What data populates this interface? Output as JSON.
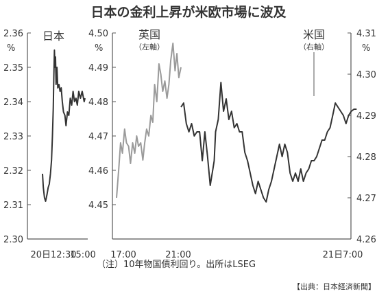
{
  "title": "日本の金利上昇が米欧市場に波及",
  "note": "（注）10年物国債利回り。出所はLSEG",
  "credit": "【出典：日本経済新聞】",
  "chart_data": [
    {
      "type": "line",
      "name": "日本",
      "axis_unit": "%",
      "ylim": [
        2.3,
        2.36
      ],
      "yticks": [
        "2.36",
        "2.35",
        "2.34",
        "2.33",
        "2.32",
        "2.31",
        "2.30"
      ],
      "xticks": [
        "20日12:30",
        "15:00"
      ],
      "color": "#333333",
      "points": [
        [
          "12:30",
          2.319
        ],
        [
          "12:33",
          2.315
        ],
        [
          "12:37",
          2.312
        ],
        [
          "12:41",
          2.311
        ],
        [
          "12:46",
          2.313
        ],
        [
          "12:50",
          2.315
        ],
        [
          "12:54",
          2.316
        ],
        [
          "12:58",
          2.319
        ],
        [
          "13:02",
          2.323
        ],
        [
          "13:05",
          2.33
        ],
        [
          "13:08",
          2.338
        ],
        [
          "13:10",
          2.347
        ],
        [
          "13:12",
          2.355
        ],
        [
          "13:14",
          2.35
        ],
        [
          "13:16",
          2.353
        ],
        [
          "13:18",
          2.345
        ],
        [
          "13:21",
          2.35
        ],
        [
          "13:24",
          2.344
        ],
        [
          "13:28",
          2.345
        ],
        [
          "13:32",
          2.343
        ],
        [
          "13:36",
          2.344
        ],
        [
          "13:40",
          2.34
        ],
        [
          "13:44",
          2.337
        ],
        [
          "13:49",
          2.336
        ],
        [
          "13:53",
          2.333
        ],
        [
          "13:58",
          2.337
        ],
        [
          "14:03",
          2.336
        ],
        [
          "14:08",
          2.341
        ],
        [
          "14:13",
          2.339
        ],
        [
          "14:18",
          2.343
        ],
        [
          "14:23",
          2.34
        ],
        [
          "14:28",
          2.341
        ],
        [
          "14:33",
          2.339
        ],
        [
          "14:38",
          2.343
        ],
        [
          "14:44",
          2.341
        ],
        [
          "14:50",
          2.343
        ],
        [
          "14:57",
          2.34
        ],
        [
          "15:00",
          2.341
        ]
      ]
    },
    {
      "type": "line",
      "axis_unit": "%",
      "ylim": [
        4.44,
        4.5
      ],
      "yticks": [
        "4.50",
        "4.49",
        "4.48",
        "4.47",
        "4.46",
        "4.45"
      ],
      "xticks": [
        "17:00",
        "21:00"
      ],
      "series": [
        {
          "name": "英国",
          "name_note": "（左軸）",
          "color": "#9a9a9a",
          "points": [
            [
              "17:00",
              4.452
            ],
            [
              "17:08",
              4.46
            ],
            [
              "17:15",
              4.468
            ],
            [
              "17:22",
              4.465
            ],
            [
              "17:30",
              4.472
            ],
            [
              "17:37",
              4.468
            ],
            [
              "17:45",
              4.467
            ],
            [
              "17:52",
              4.462
            ],
            [
              "18:00",
              4.468
            ],
            [
              "18:08",
              4.465
            ],
            [
              "18:15",
              4.47
            ],
            [
              "18:22",
              4.467
            ],
            [
              "18:30",
              4.468
            ],
            [
              "18:38",
              4.463
            ],
            [
              "18:45",
              4.468
            ],
            [
              "18:52",
              4.472
            ],
            [
              "19:00",
              4.47
            ],
            [
              "19:08",
              4.476
            ],
            [
              "19:15",
              4.474
            ],
            [
              "19:22",
              4.485
            ],
            [
              "19:30",
              4.48
            ],
            [
              "19:38",
              4.491
            ],
            [
              "19:45",
              4.488
            ],
            [
              "19:52",
              4.483
            ],
            [
              "20:00",
              4.486
            ],
            [
              "20:08",
              4.481
            ],
            [
              "20:15",
              4.485
            ],
            [
              "20:22",
              4.492
            ],
            [
              "20:30",
              4.497
            ],
            [
              "20:38",
              4.489
            ],
            [
              "20:45",
              4.494
            ],
            [
              "20:52",
              4.487
            ],
            [
              "21:00",
              4.49
            ]
          ]
        },
        {
          "name": "米国",
          "name_note": "（右軸）",
          "axis": "right",
          "axis_unit": "%",
          "ylim": [
            4.26,
            4.31
          ],
          "yticks": [
            "4.31",
            "4.30",
            "4.29",
            "4.28",
            "4.27",
            "4.26"
          ],
          "xticks": [
            "21日7:00"
          ],
          "color": "#333333",
          "points": [
            [
              "21:00",
              4.292
            ],
            [
              "21:10",
              4.293
            ],
            [
              "21:20",
              4.288
            ],
            [
              "21:30",
              4.286
            ],
            [
              "21:40",
              4.288
            ],
            [
              "21:50",
              4.285
            ],
            [
              "22:00",
              4.286
            ],
            [
              "22:10",
              4.286
            ],
            [
              "22:20",
              4.279
            ],
            [
              "22:30",
              4.286
            ],
            [
              "22:40",
              4.28
            ],
            [
              "22:50",
              4.273
            ],
            [
              "23:00",
              4.277
            ],
            [
              "23:05",
              4.279
            ],
            [
              "23:10",
              4.286
            ],
            [
              "23:20",
              4.289
            ],
            [
              "23:30",
              4.298
            ],
            [
              "23:40",
              4.291
            ],
            [
              "23:50",
              4.294
            ],
            [
              "24:00",
              4.289
            ],
            [
              "24:10",
              4.291
            ],
            [
              "24:20",
              4.287
            ],
            [
              "24:30",
              4.288
            ],
            [
              "24:40",
              4.286
            ],
            [
              "24:50",
              4.286
            ],
            [
              "25:00",
              4.281
            ],
            [
              "25:10",
              4.279
            ],
            [
              "25:20",
              4.276
            ],
            [
              "25:30",
              4.273
            ],
            [
              "25:40",
              4.271
            ],
            [
              "25:50",
              4.274
            ],
            [
              "26:00",
              4.272
            ],
            [
              "26:10",
              4.27
            ],
            [
              "26:20",
              4.269
            ],
            [
              "26:30",
              4.272
            ],
            [
              "26:40",
              4.274
            ],
            [
              "26:50",
              4.277
            ],
            [
              "27:00",
              4.28
            ],
            [
              "27:10",
              4.283
            ],
            [
              "27:20",
              4.28
            ],
            [
              "27:30",
              4.283
            ],
            [
              "27:40",
              4.281
            ],
            [
              "27:50",
              4.276
            ],
            [
              "28:00",
              4.274
            ],
            [
              "28:10",
              4.276
            ],
            [
              "28:20",
              4.274
            ],
            [
              "28:30",
              4.277
            ],
            [
              "28:40",
              4.274
            ],
            [
              "28:50",
              4.276
            ],
            [
              "29:00",
              4.277
            ],
            [
              "29:10",
              4.279
            ],
            [
              "29:20",
              4.279
            ],
            [
              "29:30",
              4.28
            ],
            [
              "29:40",
              4.282
            ],
            [
              "29:50",
              4.284
            ],
            [
              "30:00",
              4.284
            ],
            [
              "30:10",
              4.286
            ],
            [
              "30:20",
              4.287
            ],
            [
              "30:30",
              4.29
            ],
            [
              "30:40",
              4.293
            ],
            [
              "30:50",
              4.292
            ],
            [
              "31:00",
              4.291
            ],
            [
              "31:10",
              4.29
            ],
            [
              "31:20",
              4.288
            ],
            [
              "31:30",
              4.29
            ],
            [
              "31:40",
              4.291
            ],
            [
              "31:50",
              4.2915
            ],
            [
              "32:00",
              4.2915
            ]
          ]
        }
      ]
    }
  ]
}
